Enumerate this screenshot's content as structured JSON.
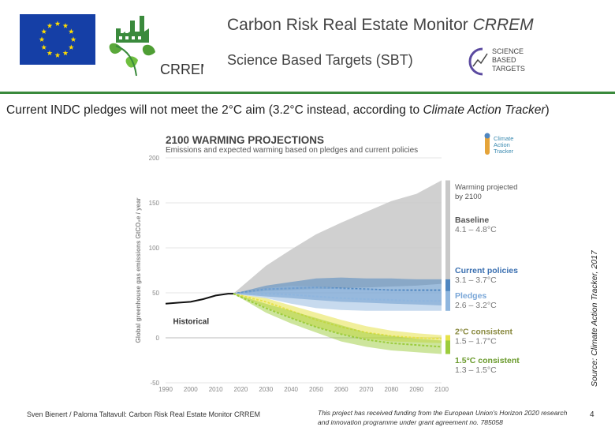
{
  "header": {
    "title_main": "Carbon Risk Real Estate Monitor ",
    "title_em": "CRREM",
    "subtitle": "Science Based Targets (SBT)",
    "crrem_logo_text": "CRREM",
    "sbt_logo_lines": [
      "SCIENCE",
      "BASED",
      "TARGETS"
    ]
  },
  "intro": {
    "text_before": "Current INDC pledges will not meet the 2°C aim (3.2°C instead, according to ",
    "text_em": "Climate Action Tracker",
    "text_after": ")"
  },
  "source_note": "Source: Climate Action Tracker, 2017",
  "footer": {
    "left": "Sven Bienert / Paloma Taltavull: Carbon Risk Real Estate Monitor CRREM",
    "middle": "This project has received funding from the European Union's Horizon 2020 research and innovation programme under grant agreement no. 785058",
    "page_number": "4"
  },
  "colors": {
    "brand_green": "#3a8a3c",
    "eu_blue": "#153fa6",
    "eu_star": "#ffdd00",
    "baseline": "#c8c8c8",
    "current_policies": "#4f86c0",
    "pledges": "#8fb6de",
    "two_degree": "#e6e24a",
    "one_five_degree": "#9ccc3c",
    "historical": "#111111"
  },
  "chart_data": {
    "type": "area",
    "title": "2100 WARMING PROJECTIONS",
    "subtitle": "Emissions and expected warming based on pledges and current policies",
    "ylabel": "Global greenhouse gas emissions GtCO₂e / year",
    "xlabel": "",
    "xlim": [
      1990,
      2100
    ],
    "ylim": [
      -50,
      200
    ],
    "x_ticks": [
      1990,
      2000,
      2010,
      2020,
      2030,
      2040,
      2050,
      2060,
      2070,
      2080,
      2090,
      2100
    ],
    "y_ticks": [
      -50,
      0,
      50,
      100,
      150,
      200
    ],
    "logo_text": [
      "Climate",
      "Action",
      "Tracker"
    ],
    "historical": {
      "name": "Historical",
      "x": [
        1990,
        1995,
        2000,
        2005,
        2010,
        2015,
        2017
      ],
      "y": [
        38,
        39,
        40,
        43,
        47,
        49,
        49
      ]
    },
    "bands": [
      {
        "name": "Baseline",
        "range": "4.1 – 4.8°C",
        "x": [
          2017,
          2030,
          2040,
          2050,
          2060,
          2070,
          2080,
          2090,
          2100
        ],
        "lower": [
          49,
          52,
          53,
          54,
          55,
          56,
          57,
          58,
          60
        ],
        "upper": [
          49,
          80,
          98,
          115,
          128,
          140,
          152,
          160,
          175
        ]
      },
      {
        "name": "Current policies",
        "range": "3.1 – 3.7°C",
        "x": [
          2017,
          2030,
          2040,
          2050,
          2060,
          2070,
          2080,
          2090,
          2100
        ],
        "lower": [
          49,
          46,
          44,
          42,
          40,
          39,
          38,
          37,
          36
        ],
        "upper": [
          49,
          58,
          62,
          66,
          67,
          66,
          66,
          65,
          65
        ],
        "median": [
          49,
          54,
          55,
          56,
          55,
          54,
          53,
          53,
          53
        ]
      },
      {
        "name": "Pledges",
        "range": "2.6 – 3.2°C",
        "x": [
          2017,
          2030,
          2040,
          2050,
          2060,
          2070,
          2080,
          2090,
          2100
        ],
        "lower": [
          49,
          44,
          38,
          33,
          31,
          30,
          30,
          30,
          30
        ],
        "upper": [
          49,
          55,
          58,
          57,
          55,
          54,
          53,
          52,
          52
        ],
        "median": [
          49,
          49,
          48,
          46,
          44,
          43,
          42,
          41,
          41
        ]
      },
      {
        "name": "2°C consistent",
        "range": "1.5 – 1.7°C",
        "x": [
          2017,
          2030,
          2040,
          2050,
          2060,
          2070,
          2080,
          2090,
          2100
        ],
        "lower": [
          49,
          34,
          22,
          12,
          4,
          -1,
          -4,
          -5,
          -6
        ],
        "upper": [
          49,
          44,
          36,
          28,
          20,
          13,
          8,
          5,
          3
        ],
        "median": [
          49,
          40,
          30,
          20,
          12,
          6,
          2,
          0,
          -1
        ]
      },
      {
        "name": "1.5°C consistent",
        "range": "1.3 – 1.5°C",
        "x": [
          2017,
          2030,
          2040,
          2050,
          2060,
          2070,
          2080,
          2090,
          2100
        ],
        "lower": [
          49,
          28,
          16,
          6,
          -4,
          -10,
          -14,
          -16,
          -18
        ],
        "upper": [
          49,
          38,
          30,
          22,
          14,
          6,
          2,
          -1,
          -3
        ],
        "median": [
          49,
          33,
          22,
          12,
          4,
          -2,
          -6,
          -8,
          -10
        ]
      }
    ],
    "annotations": {
      "warming_heading": "Warming projected by 2100"
    }
  }
}
